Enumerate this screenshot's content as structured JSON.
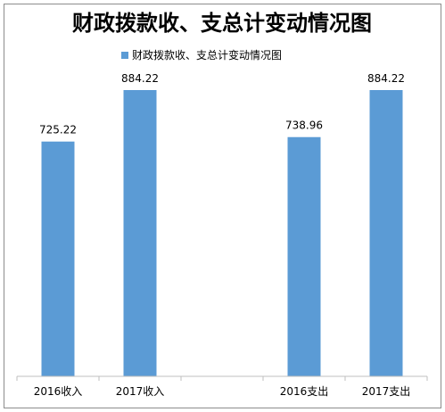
{
  "chart_data": {
    "type": "bar",
    "title": "财政拨款收、支总计变动情况图",
    "legend": {
      "position": "top",
      "label": "财政拨款收、支总计变动情况图"
    },
    "categories": [
      "2016收入",
      "2017收入",
      "",
      "2016支出",
      "2017支出"
    ],
    "series": [
      {
        "name": "财政拨款收、支总计变动情况图",
        "values": [
          725.22,
          884.22,
          null,
          738.96,
          884.22
        ],
        "labels": [
          "725.22",
          "884.22",
          "",
          "738.96",
          "884.22"
        ]
      }
    ],
    "ylim": [
      0,
      884.22
    ],
    "grid": false,
    "colors": {
      "bar": "#5b9bd5",
      "axis": "#bfbfbf",
      "frame": "#8c8c8c"
    }
  }
}
